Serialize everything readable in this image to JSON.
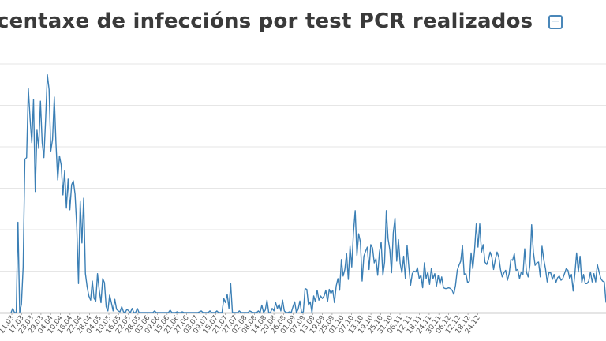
{
  "header": {
    "title": "centaxe de infeccións por test PCR realizados",
    "collapse_icon": "minus-square-icon",
    "collapse_symbol": "−"
  },
  "colors": {
    "line": "#3b7fb5",
    "gridline": "#e6e6e6",
    "baseline": "#333333",
    "title": "#3a3a3a",
    "accent": "#4a87b9"
  },
  "chart_data": {
    "type": "line",
    "title": "centaxe de infeccións por test PCR realizados",
    "xlabel": "",
    "ylabel": "",
    "grid": true,
    "x_tick_labels": [
      "11.03",
      "17.03",
      "23.03",
      "29.03",
      "04.04",
      "10.04",
      "16.04",
      "22.04",
      "28.04",
      "04.05",
      "10.05",
      "16.05",
      "22.05",
      "28.05",
      "03.06",
      "09.06",
      "15.06",
      "21.06",
      "27.06",
      "03.07",
      "09.07",
      "15.07",
      "21.07",
      "27.07",
      "02.08",
      "08.08",
      "14.08",
      "20.08",
      "26.08",
      "01.09",
      "07.09",
      "13.09",
      "19.09",
      "25.09",
      "01.10",
      "07.10",
      "13.10",
      "19.10",
      "25.10",
      "31.10",
      "06.11",
      "12.11",
      "18.11",
      "24.11",
      "30.11",
      "06.12",
      "12.12",
      "18.12",
      "24.12"
    ],
    "y_levels": [
      0,
      0.5,
      1,
      1.5,
      2,
      2.5,
      3
    ],
    "series": [
      {
        "values": [
          0,
          0.05,
          0,
          0,
          1.09,
          0,
          0.1,
          0.55,
          1.85,
          1.87,
          2.7,
          2.34,
          2.05,
          2.57,
          1.46,
          2.2,
          1.98,
          2.55,
          2.05,
          1.87,
          2.34,
          2.87,
          2.69,
          1.95,
          2.09,
          2.6,
          2.03,
          1.6,
          1.89,
          1.78,
          1.42,
          1.71,
          1.26,
          1.61,
          1.24,
          1.54,
          1.59,
          1.43,
          1.03,
          0.35,
          1.34,
          0.84,
          1.38,
          0.47,
          0.31,
          0.2,
          0.15,
          0.38,
          0.17,
          0.14,
          0.47,
          0.27,
          0.12,
          0.41,
          0.36,
          0.07,
          0.02,
          0.21,
          0.12,
          0.02,
          0.16,
          0.04,
          0.02,
          0.01,
          0.07,
          0.01,
          0,
          0.04,
          0.02,
          0,
          0.05,
          0,
          0,
          0.05,
          0,
          0,
          0,
          0,
          0,
          0,
          0,
          0,
          0,
          0.02,
          0,
          0,
          0,
          0,
          0,
          0,
          0,
          0,
          0.03,
          0,
          0,
          0,
          0.01,
          0,
          0,
          0.01,
          0,
          0,
          0,
          0,
          0,
          0,
          0,
          0,
          0,
          0.01,
          0.02,
          0,
          0,
          0,
          0,
          0.02,
          0,
          0,
          0,
          0.02,
          0,
          0,
          0,
          0.17,
          0.12,
          0.22,
          0.05,
          0.35,
          0,
          0,
          0,
          0,
          0.02,
          0,
          0,
          0,
          0,
          0,
          0.02,
          0.01,
          0,
          0,
          0,
          0.02,
          0,
          0.09,
          0,
          0.03,
          0.15,
          0,
          0,
          0.05,
          0.02,
          0.12,
          0.05,
          0.1,
          0.02,
          0.15,
          0.02,
          0,
          0,
          0.01,
          0,
          0.07,
          0.13,
          0,
          0.04,
          0.14,
          0,
          0.01,
          0.29,
          0.28,
          0.09,
          0.13,
          0,
          0.2,
          0.13,
          0.27,
          0.15,
          0.2,
          0.17,
          0.2,
          0.27,
          0.13,
          0.28,
          0.23,
          0.27,
          0.12,
          0.32,
          0.41,
          0.27,
          0.64,
          0.44,
          0.52,
          0.71,
          0.4,
          0.8,
          0.55,
          0.97,
          1.23,
          0.69,
          0.95,
          0.85,
          0.38,
          0.68,
          0.74,
          0.79,
          0.52,
          0.82,
          0.78,
          0.6,
          0.65,
          0.45,
          0.73,
          0.85,
          0.45,
          0.61,
          1.23,
          0.89,
          0.76,
          0.48,
          0.96,
          1.14,
          0.62,
          0.88,
          0.59,
          0.48,
          0.68,
          0.41,
          0.81,
          0.55,
          0.33,
          0.47,
          0.5,
          0.49,
          0.54,
          0.41,
          0.45,
          0.3,
          0.6,
          0.41,
          0.49,
          0.34,
          0.53,
          0.41,
          0.47,
          0.32,
          0.45,
          0.34,
          0.43,
          0.3,
          0.29,
          0.29,
          0.3,
          0.29,
          0.27,
          0.22,
          0.33,
          0.51,
          0.57,
          0.62,
          0.81,
          0.46,
          0.47,
          0.36,
          0.38,
          0.72,
          0.53,
          0.75,
          1.07,
          0.79,
          1.07,
          0.73,
          0.82,
          0.61,
          0.58,
          0.64,
          0.73,
          0.67,
          0.52,
          0.64,
          0.73,
          0.67,
          0.52,
          0.43,
          0.48,
          0.51,
          0.39,
          0.47,
          0.64,
          0.63,
          0.71,
          0.51,
          0.52,
          0.41,
          0.49,
          0.46,
          0.77,
          0.49,
          0.43,
          0.57,
          1.06,
          0.73,
          0.57,
          0.6,
          0.61,
          0.43,
          0.8,
          0.64,
          0.53,
          0.37,
          0.48,
          0.48,
          0.4,
          0.46,
          0.36,
          0.42,
          0.44,
          0.39,
          0.41,
          0.47,
          0.53,
          0.51,
          0.41,
          0.46,
          0.26,
          0.47,
          0.72,
          0.49,
          0.68,
          0.36,
          0.46,
          0.35,
          0.35,
          0.38,
          0.49,
          0.37,
          0.47,
          0.37,
          0.58,
          0.49,
          0.41,
          0.38,
          0.37,
          0.12
        ]
      }
    ]
  }
}
